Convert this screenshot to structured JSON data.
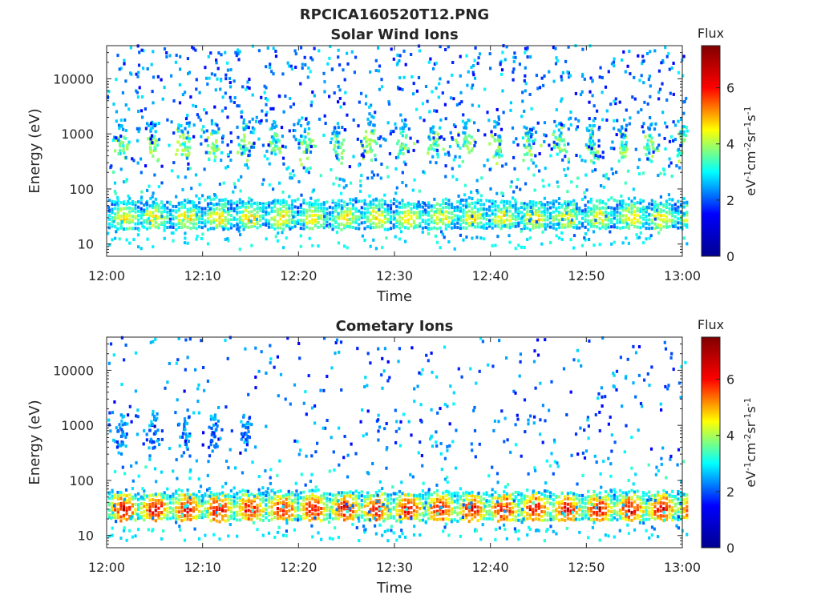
{
  "figure": {
    "file_title": "RPCICA160520T12.PNG"
  },
  "chart_data": [
    {
      "type": "heatmap",
      "title": "Solar Wind Ions",
      "xlabel": "Time",
      "ylabel": "Energy (eV)",
      "x_ticks": [
        "12:00",
        "12:10",
        "12:20",
        "12:30",
        "12:40",
        "12:50",
        "13:00"
      ],
      "xlim": [
        "12:00",
        "13:00"
      ],
      "y_ticks": [
        10,
        100,
        1000,
        10000
      ],
      "y_tick_labels": [
        "10",
        "100",
        "1000",
        "10000"
      ],
      "yscale": "log",
      "ylim": [
        6,
        40000
      ],
      "colorbar": {
        "title": "Flux",
        "label_parts": [
          "eV",
          "-1",
          "cm",
          "-2",
          "sr",
          "-1",
          "s",
          "-1"
        ],
        "ticks": [
          0,
          2,
          4,
          6
        ],
        "range": [
          0,
          7.5
        ],
        "colormap": [
          "#00008f",
          "#0000ff",
          "#00ffff",
          "#ffff00",
          "#ff0000",
          "#800000"
        ]
      },
      "features": {
        "beam_times_min": [
          1.4,
          4.8,
          8.0,
          11.0,
          14.3,
          17.4,
          20.7,
          24.0,
          27.3,
          30.7,
          34.0,
          37.3,
          40.6,
          43.9,
          47.2,
          50.5,
          53.8,
          56.6,
          59.8
        ],
        "beam_energy_eV": 600,
        "beam_peak_flux": 4.3,
        "low_band_energy_eV": 30,
        "low_band_peak_flux": 5.0
      }
    },
    {
      "type": "heatmap",
      "title": "Cometary Ions",
      "xlabel": "Time",
      "ylabel": "Energy (eV)",
      "x_ticks": [
        "12:00",
        "12:10",
        "12:20",
        "12:30",
        "12:40",
        "12:50",
        "13:00"
      ],
      "xlim": [
        "12:00",
        "13:00"
      ],
      "y_ticks": [
        10,
        100,
        1000,
        10000
      ],
      "y_tick_labels": [
        "10",
        "100",
        "1000",
        "10000"
      ],
      "yscale": "log",
      "ylim": [
        6,
        40000
      ],
      "colorbar": {
        "title": "Flux",
        "label_parts": [
          "eV",
          "-1",
          "cm",
          "-2",
          "sr",
          "-1",
          "s",
          "-1"
        ],
        "ticks": [
          0,
          2,
          4,
          6
        ],
        "range": [
          0,
          7.5
        ],
        "colormap": [
          "#00008f",
          "#0000ff",
          "#00ffff",
          "#ffff00",
          "#ff0000",
          "#800000"
        ]
      },
      "features": {
        "beam_times_min": [
          1.4,
          4.8,
          8.0,
          11.0,
          14.3
        ],
        "beam_energy_eV": 600,
        "beam_peak_flux": 2.5,
        "low_band_energy_eV": 30,
        "low_band_peak_flux": 6.8
      }
    }
  ]
}
